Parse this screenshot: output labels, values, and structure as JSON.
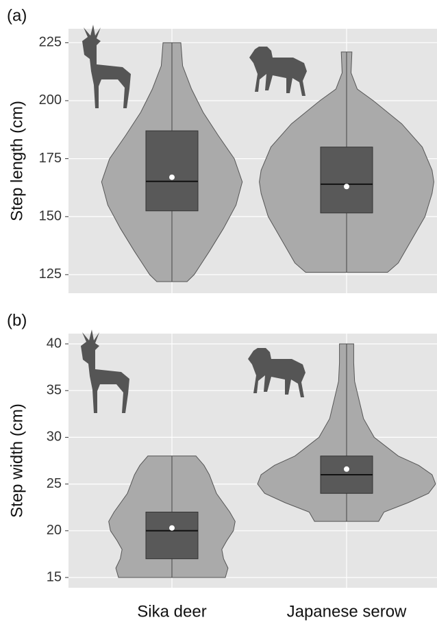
{
  "chart_data": [
    {
      "type": "violin",
      "panel_label": "(a)",
      "ylabel": "Step length (cm)",
      "ylim": [
        117,
        231
      ],
      "yticks": [
        125,
        150,
        175,
        200,
        225
      ],
      "grid": true,
      "background": "#e5e5e5",
      "violin_color": "#aaaaaa",
      "box_color": "#595959",
      "groups": [
        {
          "min": 122,
          "q1": 152.5,
          "median": 165.2,
          "q3": 187,
          "max": 225,
          "mean": 167,
          "density_y": [
            225,
            215,
            205,
            195,
            185,
            175,
            165,
            155,
            145,
            135,
            125,
            122
          ],
          "density": [
            0.1,
            0.12,
            0.22,
            0.35,
            0.52,
            0.7,
            0.79,
            0.72,
            0.58,
            0.42,
            0.25,
            0.17
          ]
        },
        {
          "min": 126,
          "q1": 151.6,
          "median": 164,
          "q3": 180,
          "max": 221,
          "mean": 163,
          "density_y": [
            221,
            212,
            205,
            200,
            190,
            180,
            170,
            165,
            160,
            150,
            140,
            130,
            126
          ],
          "density": [
            0.06,
            0.05,
            0.12,
            0.3,
            0.62,
            0.85,
            0.96,
            0.98,
            0.96,
            0.88,
            0.73,
            0.58,
            0.46
          ]
        }
      ]
    },
    {
      "type": "violin",
      "panel_label": "(b)",
      "ylabel": "Step width (cm)",
      "ylim": [
        13.9,
        41.1
      ],
      "yticks": [
        15,
        20,
        25,
        30,
        35,
        40
      ],
      "grid": true,
      "background": "#e5e5e5",
      "violin_color": "#aaaaaa",
      "box_color": "#595959",
      "categories": [
        "Sika deer",
        "Japanese serow"
      ],
      "groups": [
        {
          "min": 15,
          "q1": 17,
          "median": 20,
          "q3": 22,
          "max": 28,
          "mean": 20.3,
          "density_y": [
            28,
            27,
            26,
            24,
            22,
            21,
            20,
            19,
            18,
            17,
            16,
            15
          ],
          "density": [
            0.27,
            0.36,
            0.42,
            0.5,
            0.65,
            0.71,
            0.69,
            0.62,
            0.56,
            0.58,
            0.63,
            0.6
          ]
        },
        {
          "min": 21,
          "q1": 24,
          "median": 26,
          "q3": 28,
          "max": 40,
          "mean": 26.6,
          "density_y": [
            40,
            38,
            36,
            34,
            32,
            30,
            28,
            27,
            26,
            25,
            24,
            23,
            22,
            21
          ],
          "density": [
            0.08,
            0.08,
            0.09,
            0.14,
            0.19,
            0.31,
            0.58,
            0.81,
            0.96,
            1.0,
            0.92,
            0.69,
            0.42,
            0.36
          ]
        }
      ]
    }
  ]
}
